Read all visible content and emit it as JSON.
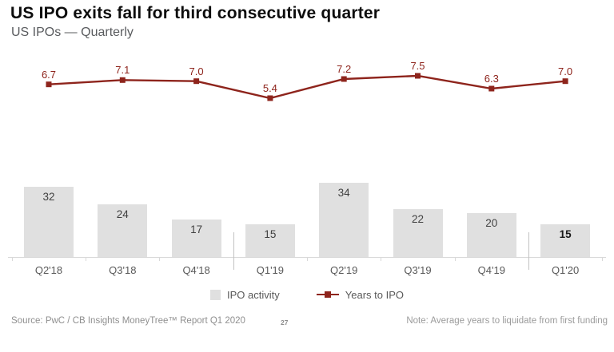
{
  "title": "US IPO exits fall for third consecutive quarter",
  "subtitle": "US IPOs — Quarterly",
  "legend": [
    {
      "label": "IPO activity",
      "swatch": "bar-swatch"
    },
    {
      "label": "Years to IPO",
      "swatch": "line-swatch"
    }
  ],
  "footer": {
    "source": "Source: PwC / CB Insights MoneyTree™ Report Q1 2020",
    "page_number": "27",
    "note": "Note: Average years to liquidate from first funding"
  },
  "colors": {
    "bar": "#e0e0e0",
    "line": "#8e241c",
    "bar_label": "#404040",
    "highlight_label": "#1a1a1a",
    "category_label": "#595959",
    "axis": "#d9d9d9",
    "separator": "#c2c2c2"
  },
  "chart_data": {
    "type": "bar",
    "subtype": "combo-bar-line",
    "categories": [
      "Q2'18",
      "Q3'18",
      "Q4'18",
      "Q1'19",
      "Q2'19",
      "Q3'19",
      "Q4'19",
      "Q1'20"
    ],
    "series": [
      {
        "name": "IPO activity",
        "type": "bar",
        "values": [
          32,
          24,
          17,
          15,
          34,
          22,
          20,
          15
        ]
      },
      {
        "name": "Years to IPO",
        "type": "line",
        "values": [
          6.7,
          7.1,
          7.0,
          5.4,
          7.2,
          7.5,
          6.3,
          7.0
        ]
      }
    ],
    "title": "US IPO exits fall for third consecutive quarter",
    "xlabel": "",
    "ylabel": "",
    "bar_ylim": [
      0,
      40
    ],
    "line_ylim": [
      0,
      8
    ],
    "grid": false,
    "legend_position": "bottom",
    "data_labels": true,
    "highlight_last_bar_label": true,
    "year_separators_after": [
      "Q4'18",
      "Q4'19"
    ]
  }
}
